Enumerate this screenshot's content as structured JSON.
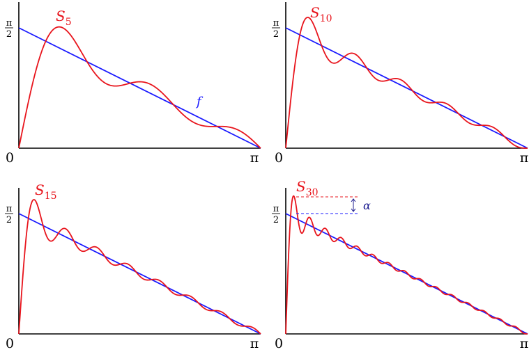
{
  "chart_data": [
    {
      "type": "line",
      "title": "",
      "x_ticks": [
        "0",
        "π"
      ],
      "y_ticks": [
        "π/2"
      ],
      "xlim": [
        0,
        3.14159
      ],
      "ylim": [
        0,
        1.5708
      ],
      "series": [
        {
          "name": "S5",
          "color": "#e8141c",
          "n_terms": 5
        },
        {
          "name": "f",
          "color": "#1a1aff"
        }
      ]
    },
    {
      "type": "line",
      "title": "",
      "x_ticks": [
        "0",
        "π"
      ],
      "y_ticks": [
        "π/2"
      ],
      "xlim": [
        0,
        3.14159
      ],
      "ylim": [
        0,
        1.5708
      ],
      "series": [
        {
          "name": "S10",
          "color": "#e8141c",
          "n_terms": 10
        },
        {
          "color": "#1a1aff"
        }
      ]
    },
    {
      "type": "line",
      "title": "",
      "x_ticks": [
        "0",
        "π"
      ],
      "y_ticks": [
        "π/2"
      ],
      "xlim": [
        0,
        3.14159
      ],
      "ylim": [
        0,
        1.5708
      ],
      "series": [
        {
          "name": "S15",
          "color": "#e8141c",
          "n_terms": 15
        },
        {
          "color": "#1a1aff"
        }
      ]
    },
    {
      "type": "line",
      "title": "",
      "x_ticks": [
        "0",
        "π"
      ],
      "y_ticks": [
        "π/2"
      ],
      "xlim": [
        0,
        3.14159
      ],
      "ylim": [
        0,
        1.5708
      ],
      "series": [
        {
          "name": "S30",
          "color": "#e8141c",
          "n_terms": 30
        },
        {
          "color": "#1a1aff"
        }
      ],
      "annotation": {
        "label": "α",
        "meaning": "overshoot gap above π/2"
      }
    }
  ],
  "labels": {
    "zero": "0",
    "pi": "π",
    "frac_num": "π",
    "frac_den": "2",
    "s_letter": "S",
    "f_label": "f",
    "alpha_label": "α"
  }
}
